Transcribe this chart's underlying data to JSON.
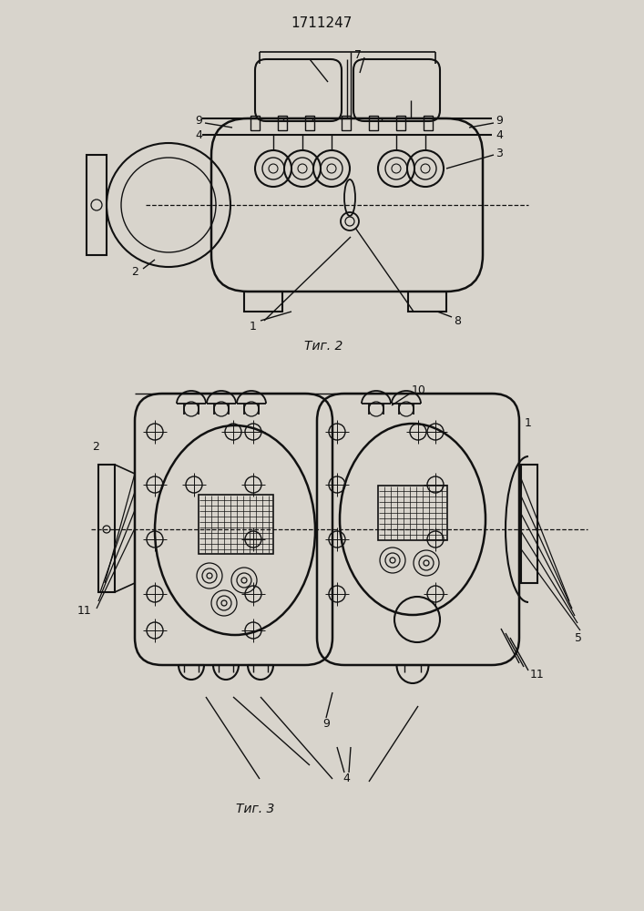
{
  "title": "1711247",
  "fig2_caption": "Τиг. 2",
  "fig3_caption": "Τиг. 3",
  "bg_color": "#d8d4cc",
  "line_color": "#111111"
}
